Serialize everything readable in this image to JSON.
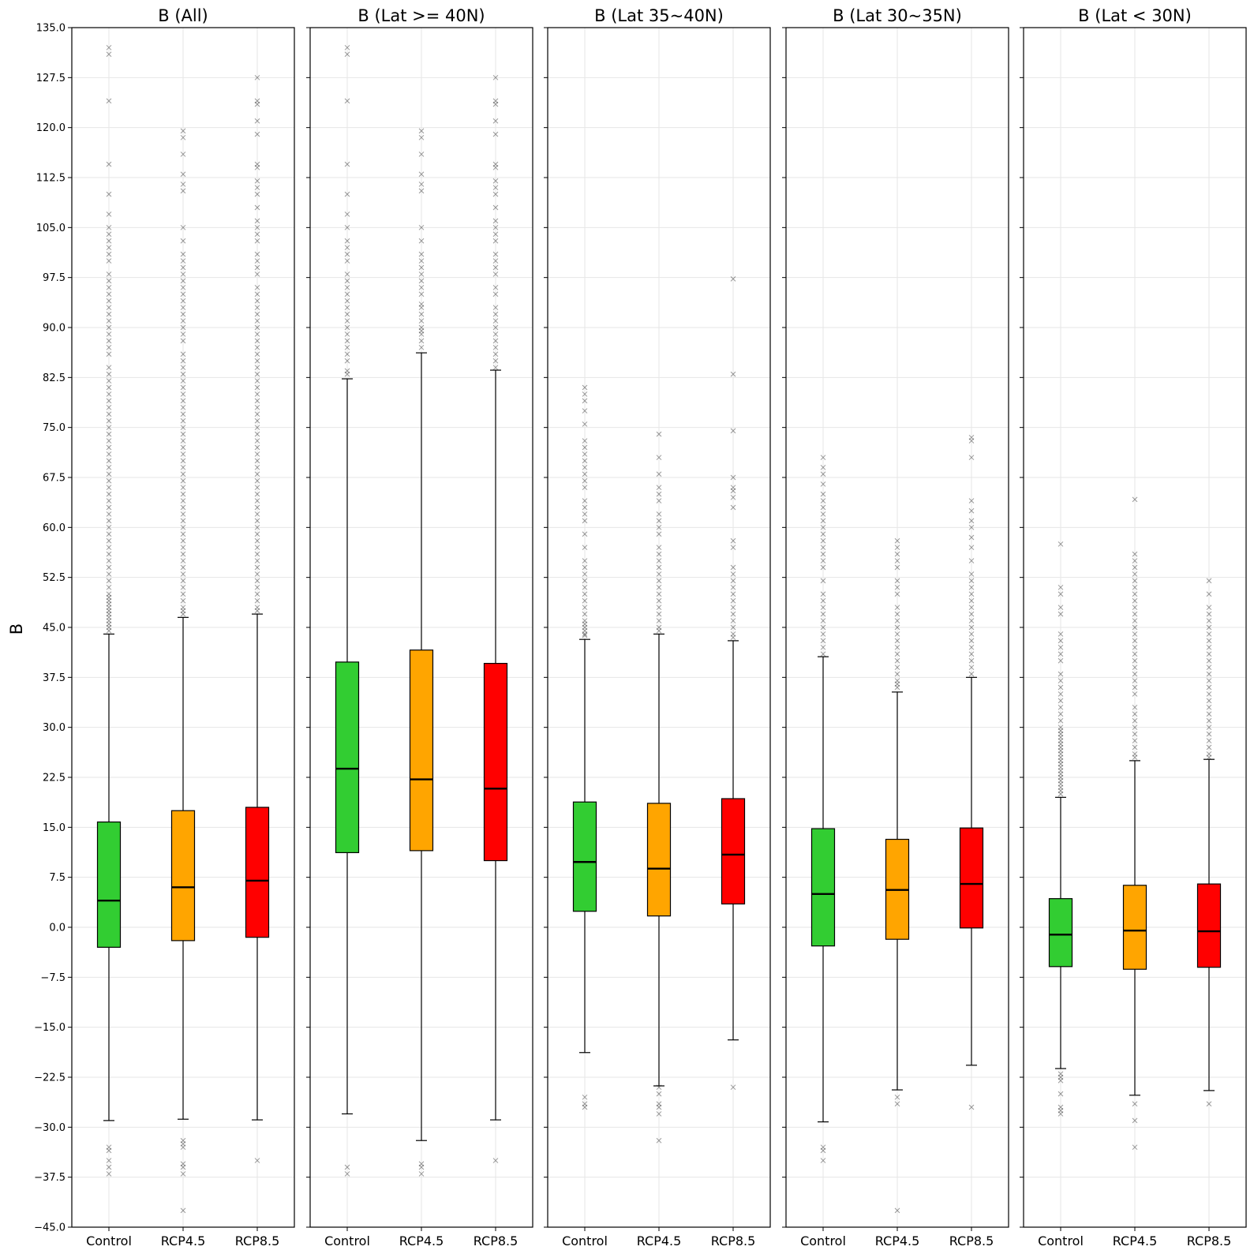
{
  "chart_data": {
    "type": "box",
    "ylabel": "B",
    "ylim": [
      -45,
      135
    ],
    "yticks": [
      "135.0",
      "127.5",
      "120.0",
      "112.5",
      "105.0",
      "97.5",
      "90.0",
      "82.5",
      "75.0",
      "67.5",
      "60.0",
      "52.5",
      "45.0",
      "37.5",
      "30.0",
      "22.5",
      "15.0",
      "7.5",
      "0.0",
      "−7.5",
      "−15.0",
      "−22.5",
      "−30.0",
      "−37.5",
      "−45.0"
    ],
    "ytick_values": [
      135,
      127.5,
      120,
      112.5,
      105,
      97.5,
      90,
      82.5,
      75,
      67.5,
      60,
      52.5,
      45,
      37.5,
      30,
      22.5,
      15,
      7.5,
      0,
      -7.5,
      -15,
      -22.5,
      -30,
      -37.5,
      -45
    ],
    "categories": [
      "Control",
      "RCP4.5",
      "RCP8.5"
    ],
    "colors": [
      "#32cd32",
      "#ffa500",
      "#ff0000"
    ],
    "grid": true,
    "panels": [
      {
        "title": "B (All)",
        "boxes": [
          {
            "whisker_low": -29.0,
            "q1": -3.0,
            "median": 4.0,
            "q3": 15.8,
            "whisker_high": 44.0,
            "outliers_high": [
              44.5,
              45,
              45.5,
              46,
              46.5,
              47,
              47.5,
              48,
              48.5,
              49,
              49.5,
              50,
              51,
              52,
              53,
              54,
              55,
              56,
              57,
              58,
              59,
              60,
              61,
              62,
              63,
              64,
              65,
              66,
              67,
              68,
              69,
              70,
              71,
              72,
              73,
              74,
              75,
              76,
              77,
              78,
              79,
              80,
              81,
              82,
              83,
              84,
              86,
              87,
              88,
              89,
              90,
              91,
              92,
              93,
              94,
              95,
              96,
              97,
              98,
              100,
              101,
              102,
              103,
              104,
              105,
              107,
              110,
              114.5,
              124,
              131,
              132
            ],
            "outliers_low": [
              -33,
              -33.5,
              -35,
              -36,
              -37
            ]
          },
          {
            "whisker_low": -28.8,
            "q1": -2.0,
            "median": 6.0,
            "q3": 17.5,
            "whisker_high": 46.5,
            "outliers_high": [
              47,
              47.5,
              48,
              49,
              50,
              51,
              52,
              53,
              54,
              55,
              56,
              57,
              58,
              59,
              60,
              61,
              62,
              63,
              64,
              65,
              66,
              67,
              68,
              69,
              70,
              71,
              72,
              73,
              74,
              75,
              76,
              77,
              78,
              79,
              80,
              81,
              82,
              83,
              84,
              85,
              86,
              88,
              89,
              90,
              91,
              92,
              93,
              94,
              95,
              96,
              97,
              98,
              99,
              100,
              101,
              103,
              105,
              110.5,
              111.5,
              113,
              116,
              118.5,
              119.5
            ],
            "outliers_low": [
              -32,
              -32.5,
              -33,
              -35.5,
              -36,
              -37,
              -42.5
            ]
          },
          {
            "whisker_low": -28.9,
            "q1": -1.5,
            "median": 7.0,
            "q3": 18.0,
            "whisker_high": 47.0,
            "outliers_high": [
              47.5,
              48,
              49,
              50,
              51,
              52,
              53,
              54,
              55,
              56,
              57,
              58,
              59,
              60,
              61,
              62,
              63,
              64,
              65,
              66,
              67,
              68,
              69,
              70,
              71,
              72,
              73,
              74,
              75,
              76,
              77,
              78,
              79,
              80,
              81,
              82,
              83,
              84,
              85,
              86,
              87,
              88,
              89,
              90,
              91,
              92,
              93,
              94,
              95,
              96,
              98,
              99,
              100,
              101,
              103,
              104,
              105,
              106,
              108,
              110,
              111,
              112,
              114,
              114.5,
              119,
              121,
              123.5,
              124,
              127.5
            ],
            "outliers_low": [
              -35
            ]
          }
        ]
      },
      {
        "title": "B (Lat >= 40N)",
        "boxes": [
          {
            "whisker_low": -28.0,
            "q1": 11.2,
            "median": 23.8,
            "q3": 39.8,
            "whisker_high": 82.3,
            "outliers_high": [
              83,
              83.5,
              85,
              86,
              87,
              88,
              89,
              90,
              91,
              92,
              93,
              94,
              95,
              96,
              97,
              98,
              100,
              101,
              102,
              103,
              105,
              107,
              110,
              114.5,
              124,
              131,
              132
            ],
            "outliers_low": [
              -36,
              -37
            ]
          },
          {
            "whisker_low": -32.0,
            "q1": 11.5,
            "median": 22.2,
            "q3": 41.6,
            "whisker_high": 86.2,
            "outliers_high": [
              87,
              88,
              89,
              89.5,
              90,
              91,
              92,
              93,
              93.5,
              95,
              96,
              97,
              98,
              99,
              100,
              101,
              103,
              105,
              110.5,
              111.5,
              113,
              116,
              118.5,
              119.5
            ],
            "outliers_low": [
              -35.5,
              -36,
              -37
            ]
          },
          {
            "whisker_low": -28.9,
            "q1": 10.0,
            "median": 20.8,
            "q3": 39.6,
            "whisker_high": 83.6,
            "outliers_high": [
              84,
              85,
              86,
              87,
              88,
              89,
              90,
              91,
              92,
              93,
              95,
              96,
              98,
              99,
              100,
              101,
              103,
              104,
              105,
              106,
              108,
              110,
              111,
              112,
              114,
              114.5,
              119,
              121,
              123.5,
              124,
              127.5
            ],
            "outliers_low": [
              -35
            ]
          }
        ]
      },
      {
        "title": "B (Lat 35~40N)",
        "boxes": [
          {
            "whisker_low": -18.8,
            "q1": 2.4,
            "median": 9.8,
            "q3": 18.8,
            "whisker_high": 43.2,
            "outliers_high": [
              43.8,
              44,
              44.5,
              45,
              45.5,
              46,
              47,
              48,
              49,
              50,
              51,
              52,
              53,
              54,
              55,
              57,
              59,
              61,
              62,
              63,
              64,
              66,
              67,
              68,
              69,
              70,
              71,
              72,
              73,
              75.5,
              77.5,
              79,
              80,
              81
            ],
            "outliers_low": [
              -25.5,
              -26.5,
              -27
            ]
          },
          {
            "whisker_low": -23.8,
            "q1": 1.7,
            "median": 8.8,
            "q3": 18.6,
            "whisker_high": 44.0,
            "outliers_high": [
              44.5,
              45,
              46,
              47,
              48,
              49,
              50,
              51,
              52,
              53,
              54,
              55,
              56,
              57,
              59,
              60,
              61,
              62,
              64,
              65,
              66,
              68,
              70.5,
              74
            ],
            "outliers_low": [
              -24,
              -25,
              -26.5,
              -27,
              -28,
              -32
            ]
          },
          {
            "whisker_low": -16.9,
            "q1": 3.5,
            "median": 10.9,
            "q3": 19.3,
            "whisker_high": 43.0,
            "outliers_high": [
              43.5,
              44,
              45,
              46,
              47,
              48,
              49,
              50,
              51,
              52,
              53,
              54,
              57,
              58,
              63,
              64.5,
              65.5,
              66,
              67.5,
              74.5,
              83,
              97.3
            ],
            "outliers_low": [
              -24
            ]
          }
        ]
      },
      {
        "title": "B (Lat 30~35N)",
        "boxes": [
          {
            "whisker_low": -29.2,
            "q1": -2.8,
            "median": 5.0,
            "q3": 14.8,
            "whisker_high": 40.6,
            "outliers_high": [
              41,
              42,
              43,
              44,
              45,
              46,
              47,
              48,
              49,
              50,
              52,
              54,
              55,
              56,
              57,
              58,
              59,
              60,
              61,
              62,
              63,
              64,
              65,
              66.5,
              68,
              69,
              70.5
            ],
            "outliers_low": [
              -33,
              -33.5,
              -35
            ]
          },
          {
            "whisker_low": -24.4,
            "q1": -1.8,
            "median": 5.6,
            "q3": 13.2,
            "whisker_high": 35.3,
            "outliers_high": [
              36,
              36.5,
              37,
              38,
              39,
              40,
              41,
              42,
              43,
              44,
              45,
              46,
              47,
              48,
              50,
              51,
              52,
              54,
              55,
              56,
              57,
              58
            ],
            "outliers_low": [
              -25.5,
              -26.5,
              -42.5
            ]
          },
          {
            "whisker_low": -20.7,
            "q1": -0.1,
            "median": 6.5,
            "q3": 14.9,
            "whisker_high": 37.5,
            "outliers_high": [
              38,
              39,
              40,
              41,
              42,
              43,
              44,
              45,
              46,
              47,
              48,
              49,
              50,
              51,
              52,
              53,
              55,
              57,
              58.5,
              60,
              61,
              62.5,
              64,
              70.5,
              73,
              73.5
            ],
            "outliers_low": [
              -27
            ]
          }
        ]
      },
      {
        "title": "B (Lat < 30N)",
        "boxes": [
          {
            "whisker_low": -21.2,
            "q1": -5.9,
            "median": -1.1,
            "q3": 4.3,
            "whisker_high": 19.5,
            "outliers_high": [
              20,
              20.5,
              21,
              21.5,
              22,
              22.5,
              23,
              23.5,
              24,
              24.5,
              25,
              25.5,
              26,
              26.5,
              27,
              27.5,
              28,
              28.5,
              29,
              29.5,
              30,
              31,
              32,
              33,
              34,
              35,
              36,
              37,
              38,
              40,
              41,
              42,
              43,
              44,
              47,
              48,
              50,
              51,
              57.5
            ],
            "outliers_low": [
              -22,
              -22.5,
              -23,
              -25,
              -27,
              -27.5,
              -28
            ]
          },
          {
            "whisker_low": -25.2,
            "q1": -6.3,
            "median": -0.5,
            "q3": 6.3,
            "whisker_high": 25.0,
            "outliers_high": [
              25.5,
              26,
              27,
              28,
              29,
              30,
              31,
              32,
              33,
              35,
              36,
              37,
              38,
              39,
              40,
              41,
              42,
              43,
              44,
              45,
              46,
              47,
              48,
              49,
              50,
              51,
              52,
              53,
              54,
              55,
              56,
              64.2
            ],
            "outliers_low": [
              -26.5,
              -29,
              -33
            ]
          },
          {
            "whisker_low": -24.5,
            "q1": -6.0,
            "median": -0.6,
            "q3": 6.5,
            "whisker_high": 25.2,
            "outliers_high": [
              25.5,
              26,
              27,
              28,
              29,
              30,
              31,
              32,
              33,
              34,
              35,
              36,
              37,
              38,
              39,
              40,
              41,
              42,
              43,
              44,
              45,
              46,
              47,
              48,
              50,
              52
            ],
            "outliers_low": [
              -26.5
            ]
          }
        ]
      }
    ]
  }
}
